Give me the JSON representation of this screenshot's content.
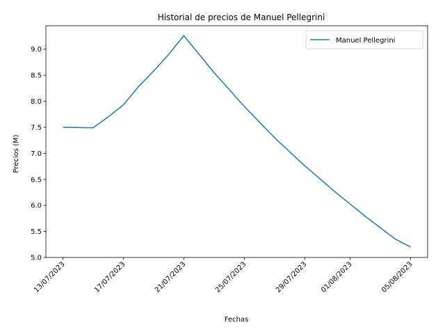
{
  "chart_data": {
    "type": "line",
    "title": "Historial de precios de Manuel Pellegrini",
    "xlabel": "Fechas",
    "ylabel": "Precios (M)",
    "ylim": [
      5.0,
      9.45
    ],
    "yticks": [
      5.0,
      5.5,
      6.0,
      6.5,
      7.0,
      7.5,
      8.0,
      8.5,
      9.0
    ],
    "ytick_labels": [
      "5.0",
      "5.5",
      "6.0",
      "6.5",
      "7.0",
      "7.5",
      "8.0",
      "8.5",
      "9.0"
    ],
    "xticks": [
      "2023-07-13",
      "2023-07-17",
      "2023-07-21",
      "2023-07-25",
      "2023-07-29",
      "2023-08-01",
      "2023-08-05"
    ],
    "xtick_labels": [
      "13/07/2023",
      "17/07/2023",
      "21/07/2023",
      "25/07/2023",
      "29/07/2023",
      "01/08/2023",
      "05/08/2023"
    ],
    "xlim": [
      "2023-07-11 21:00",
      "2023-08-06 03:00"
    ],
    "legend_position": "top-right",
    "grid": false,
    "series": [
      {
        "name": "Manuel Pellegrini",
        "color": "#1f77b4",
        "x": [
          "2023-07-13",
          "2023-07-15",
          "2023-07-16",
          "2023-07-17",
          "2023-07-18",
          "2023-07-19",
          "2023-07-20",
          "2023-07-21",
          "2023-07-23",
          "2023-07-25",
          "2023-07-27",
          "2023-07-29",
          "2023-07-31",
          "2023-08-02",
          "2023-08-04",
          "2023-08-05"
        ],
        "values": [
          7.5,
          7.49,
          7.7,
          7.93,
          8.28,
          8.58,
          8.9,
          9.26,
          8.55,
          7.9,
          7.3,
          6.76,
          6.26,
          5.79,
          5.35,
          5.2
        ]
      }
    ]
  }
}
